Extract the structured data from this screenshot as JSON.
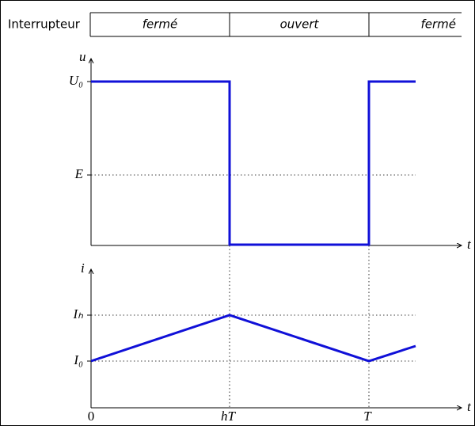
{
  "switch_row": {
    "label": "Interrupteur",
    "phases": [
      "fermé",
      "ouvert",
      "fermé"
    ]
  },
  "voltage_plot": {
    "y_axis_label": "u",
    "levels": [
      "U₀",
      "E"
    ],
    "x_axis_label": "t"
  },
  "current_plot": {
    "y_axis_label": "i",
    "levels": [
      "Iₕ",
      "I₀"
    ],
    "x_axis_label": "t",
    "x_marks": [
      "0",
      "hT",
      "T"
    ]
  }
}
